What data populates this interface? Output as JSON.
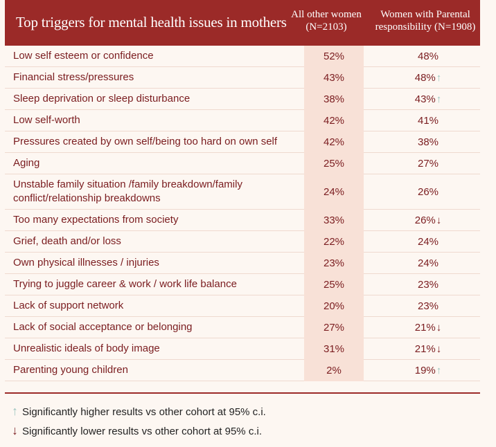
{
  "colors": {
    "header_bg": "#9b2a28",
    "text": "#7a1c1f",
    "up_arrow": "#9cc5bf",
    "down_arrow": "#7a1c1f",
    "highlight_col": "#f8e1d7"
  },
  "chart_data": {
    "type": "table",
    "title": "Top triggers for mental health issues in mothers",
    "columns": [
      "All other women (N=2103)",
      "Women with Parental responsibility (N=1908)"
    ],
    "rows": [
      {
        "label": "Low self esteem or confidence",
        "all_other": "52%",
        "parental": "48%",
        "sig": ""
      },
      {
        "label": "Financial stress/pressures",
        "all_other": "43%",
        "parental": "48%",
        "sig": "up"
      },
      {
        "label": "Sleep deprivation or sleep disturbance",
        "all_other": "38%",
        "parental": "43%",
        "sig": "up"
      },
      {
        "label": "Low self-worth",
        "all_other": "42%",
        "parental": "41%",
        "sig": ""
      },
      {
        "label": "Pressures created by own self/being too hard on own self",
        "all_other": "42%",
        "parental": "38%",
        "sig": ""
      },
      {
        "label": "Aging",
        "all_other": "25%",
        "parental": "27%",
        "sig": ""
      },
      {
        "label": "Unstable family situation /family breakdown/family conflict/relationship breakdowns",
        "all_other": "24%",
        "parental": "26%",
        "sig": ""
      },
      {
        "label": "Too many expectations from society",
        "all_other": "33%",
        "parental": "26%",
        "sig": "down"
      },
      {
        "label": "Grief, death and/or loss",
        "all_other": "22%",
        "parental": "24%",
        "sig": ""
      },
      {
        "label": "Own physical illnesses / injuries",
        "all_other": "23%",
        "parental": "24%",
        "sig": ""
      },
      {
        "label": "Trying to juggle career & work / work life balance",
        "all_other": "25%",
        "parental": "23%",
        "sig": ""
      },
      {
        "label": "Lack of support network",
        "all_other": "20%",
        "parental": "23%",
        "sig": ""
      },
      {
        "label": "Lack of social acceptance or belonging",
        "all_other": "27%",
        "parental": "21%",
        "sig": "down"
      },
      {
        "label": "Unrealistic ideals of body image",
        "all_other": "31%",
        "parental": "21%",
        "sig": "down"
      },
      {
        "label": "Parenting young children",
        "all_other": "2%",
        "parental": "19%",
        "sig": "up"
      }
    ],
    "legend": {
      "up": "Significantly higher results vs other cohort at 95% c.i.",
      "down": "Significantly lower results vs other cohort at 95% c.i."
    }
  }
}
